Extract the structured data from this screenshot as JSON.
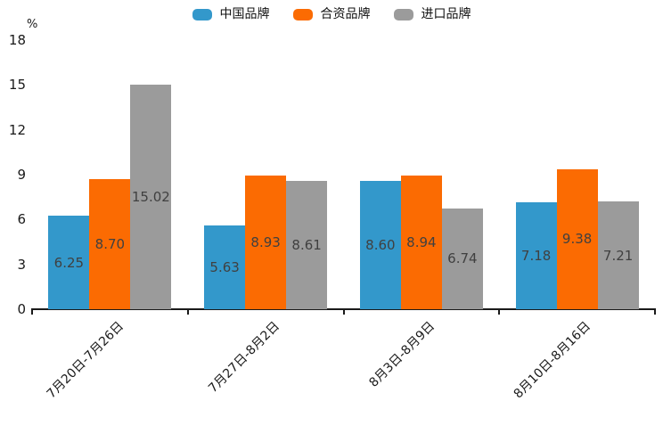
{
  "chart": {
    "unit_label": "%",
    "accent_colors": {
      "china_brand": "#3398CB",
      "joint_venture_brand": "#FB6B02",
      "import_brand": "#9B9B9B",
      "axis": "#1a1a1a",
      "value_label_text": "#404040"
    }
  },
  "chart_data": {
    "type": "bar",
    "title": "",
    "categories": [
      "7月20日-7月26日",
      "7月27日-8月2日",
      "8月3日-8月9日",
      "8月10日-8月16日"
    ],
    "series": [
      {
        "name": "中国品牌",
        "color": "#3398CB",
        "values": [
          6.25,
          5.63,
          8.6,
          7.18
        ]
      },
      {
        "name": "合资品牌",
        "color": "#FB6B02",
        "values": [
          8.7,
          8.93,
          8.94,
          9.38
        ]
      },
      {
        "name": "进口品牌",
        "color": "#9B9B9B",
        "values": [
          15.02,
          8.61,
          6.74,
          7.21
        ]
      }
    ],
    "xlabel": "",
    "ylabel": "%",
    "ylim": [
      0,
      18
    ],
    "yticks": [
      0,
      3,
      6,
      9,
      12,
      15,
      18
    ],
    "grid": false,
    "legend_position": "top-center",
    "value_labels": "inside-center",
    "value_label_decimals": 2,
    "x_tick_label_rotation": -45
  }
}
